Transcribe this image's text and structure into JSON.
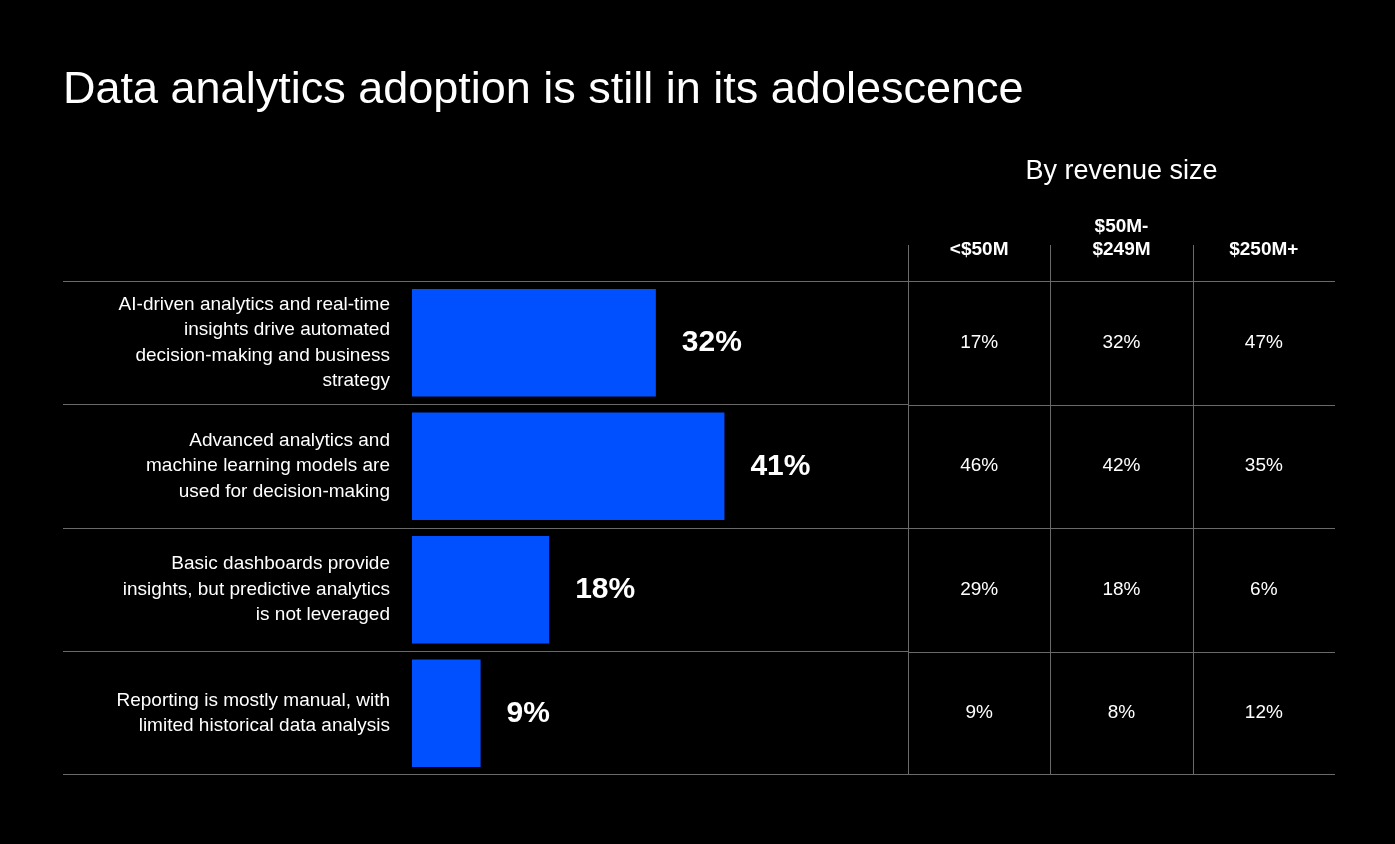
{
  "chart_data": [
    {
      "type": "bar",
      "title": "Data analytics adoption is still in its adolescence",
      "orientation": "horizontal",
      "categories": [
        "AI-driven analytics and real-time insights drive automated decision-making and business strategy",
        "Advanced analytics and machine learning models are used for decision-making",
        "Basic dashboards provide insights, but predictive analytics is not leveraged",
        "Reporting is mostly manual, with limited historical data analysis"
      ],
      "values": [
        32,
        41,
        18,
        9
      ],
      "value_labels": [
        "32%",
        "41%",
        "18%",
        "9%"
      ],
      "color": "#0050ff",
      "grid": "y",
      "legend": false
    },
    {
      "type": "heatmap",
      "title": "By revenue size",
      "categories": [
        "<$50M",
        "$50M-$249M",
        "$250M+"
      ],
      "y_categories": [
        null,
        null,
        null,
        null
      ],
      "cells": [
        [
          17,
          32,
          47
        ],
        [
          46,
          42,
          35
        ],
        [
          29,
          18,
          6
        ],
        [
          9,
          8,
          12
        ]
      ],
      "cell_labels": [
        [
          "17%",
          "32%",
          "47%"
        ],
        [
          "46%",
          "42%",
          "35%"
        ],
        [
          "29%",
          "18%",
          "6%"
        ],
        [
          "9%",
          "8%",
          "12%"
        ]
      ],
      "grid": true,
      "tick_labels": "x"
    }
  ]
}
